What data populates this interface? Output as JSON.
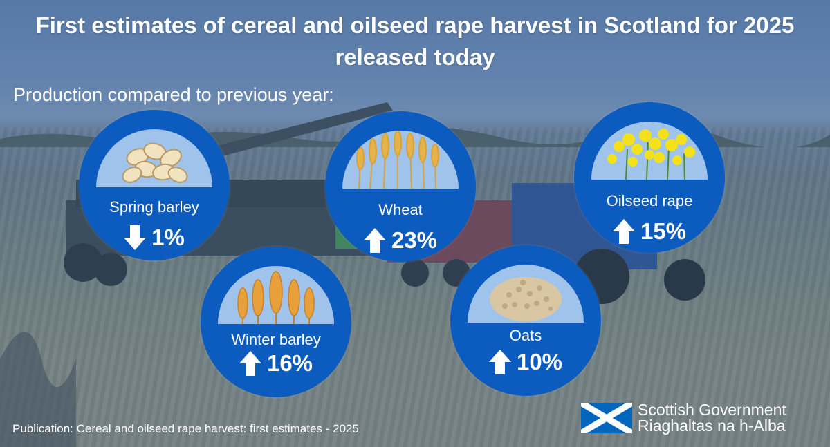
{
  "title": "First estimates of cereal and oilseed rape harvest in Scotland for 2025 released today",
  "subtitle": "Production compared to previous year:",
  "crops": [
    {
      "name": "Spring barley",
      "change": "1%",
      "direction": "down",
      "image": "barley-grains-icon"
    },
    {
      "name": "Wheat",
      "change": "23%",
      "direction": "up",
      "image": "wheat-stalks-icon"
    },
    {
      "name": "Oilseed rape",
      "change": "15%",
      "direction": "up",
      "image": "rapeseed-flowers-icon"
    },
    {
      "name": "Winter barley",
      "change": "16%",
      "direction": "up",
      "image": "barley-ears-icon"
    },
    {
      "name": "Oats",
      "change": "10%",
      "direction": "up",
      "image": "oat-pile-icon"
    }
  ],
  "footer": {
    "label": "Publication: Cereal and oilseed rape harvest: first estimates -",
    "year": "2025"
  },
  "logo": {
    "line1": "Scottish Government",
    "line2": "Riaghaltas na h-Alba",
    "flag_blue": "#0065bd",
    "flag_white": "#ffffff"
  },
  "colors": {
    "badge": "#0c5bbf",
    "dome": "#9fc3ea",
    "text": "#ffffff"
  }
}
